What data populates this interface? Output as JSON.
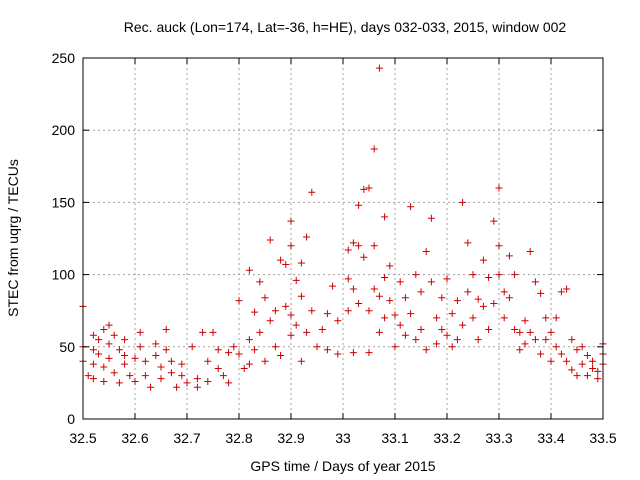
{
  "chart_data": {
    "type": "scatter",
    "title": "Rec. auck (Lon=174, Lat=-36, h=HE), days 032-033, 2015, window 002",
    "xlabel": "GPS time / Days of year 2015",
    "ylabel": "STEC from uqrg / TECUs",
    "xlim": [
      32.5,
      33.5
    ],
    "ylim": [
      0,
      250
    ],
    "xticks": [
      "32.5",
      "32.6",
      "32.7",
      "32.8",
      "32.9",
      "33",
      "33.1",
      "33.2",
      "33.3",
      "33.4",
      "33.5"
    ],
    "yticks": [
      "0",
      "50",
      "100",
      "150",
      "200",
      "250"
    ],
    "grid": true,
    "marker": "plus",
    "series": [
      {
        "name": "STEC",
        "color": "#cc0000",
        "points": [
          [
            32.5,
            78
          ],
          [
            32.5,
            50
          ],
          [
            32.5,
            40
          ],
          [
            32.51,
            30
          ],
          [
            32.52,
            58
          ],
          [
            32.52,
            48
          ],
          [
            32.52,
            38
          ],
          [
            32.52,
            28
          ],
          [
            32.53,
            55
          ],
          [
            32.53,
            45
          ],
          [
            32.54,
            62
          ],
          [
            32.54,
            36
          ],
          [
            32.54,
            26
          ],
          [
            32.55,
            65
          ],
          [
            32.55,
            52
          ],
          [
            32.55,
            42
          ],
          [
            32.56,
            58
          ],
          [
            32.56,
            32
          ],
          [
            32.57,
            48
          ],
          [
            32.57,
            25
          ],
          [
            32.58,
            55
          ],
          [
            32.58,
            44
          ],
          [
            32.58,
            38
          ],
          [
            32.59,
            30
          ],
          [
            32.6,
            42
          ],
          [
            32.6,
            26
          ],
          [
            32.61,
            60
          ],
          [
            32.61,
            50
          ],
          [
            32.62,
            40
          ],
          [
            32.62,
            30
          ],
          [
            32.63,
            22
          ],
          [
            32.64,
            52
          ],
          [
            32.64,
            44
          ],
          [
            32.65,
            36
          ],
          [
            32.65,
            28
          ],
          [
            32.66,
            62
          ],
          [
            32.66,
            48
          ],
          [
            32.67,
            40
          ],
          [
            32.67,
            32
          ],
          [
            32.68,
            22
          ],
          [
            32.69,
            38
          ],
          [
            32.69,
            30
          ],
          [
            32.7,
            25
          ],
          [
            32.71,
            50
          ],
          [
            32.72,
            28
          ],
          [
            32.72,
            22
          ],
          [
            32.73,
            60
          ],
          [
            32.74,
            40
          ],
          [
            32.74,
            26
          ],
          [
            32.75,
            60
          ],
          [
            32.76,
            48
          ],
          [
            32.76,
            35
          ],
          [
            32.77,
            30
          ],
          [
            32.78,
            46
          ],
          [
            32.78,
            25
          ],
          [
            32.79,
            50
          ],
          [
            32.8,
            82
          ],
          [
            32.8,
            45
          ],
          [
            32.81,
            35
          ],
          [
            32.82,
            103
          ],
          [
            32.82,
            55
          ],
          [
            32.82,
            38
          ],
          [
            32.83,
            74
          ],
          [
            32.83,
            48
          ],
          [
            32.84,
            95
          ],
          [
            32.84,
            60
          ],
          [
            32.85,
            84
          ],
          [
            32.85,
            40
          ],
          [
            32.86,
            124
          ],
          [
            32.86,
            68
          ],
          [
            32.87,
            75
          ],
          [
            32.87,
            50
          ],
          [
            32.88,
            110
          ],
          [
            32.88,
            44
          ],
          [
            32.89,
            107
          ],
          [
            32.89,
            78
          ],
          [
            32.9,
            137
          ],
          [
            32.9,
            120
          ],
          [
            32.9,
            72
          ],
          [
            32.9,
            58
          ],
          [
            32.91,
            96
          ],
          [
            32.91,
            65
          ],
          [
            32.92,
            108
          ],
          [
            32.92,
            85
          ],
          [
            32.92,
            40
          ],
          [
            32.93,
            126
          ],
          [
            32.93,
            60
          ],
          [
            32.94,
            157
          ],
          [
            32.94,
            75
          ],
          [
            32.95,
            50
          ],
          [
            32.96,
            62
          ],
          [
            32.97,
            73
          ],
          [
            32.97,
            48
          ],
          [
            32.98,
            92
          ],
          [
            32.99,
            68
          ],
          [
            32.99,
            45
          ],
          [
            33.01,
            117
          ],
          [
            33.01,
            97
          ],
          [
            33.01,
            75
          ],
          [
            33.02,
            122
          ],
          [
            33.02,
            90
          ],
          [
            33.02,
            46
          ],
          [
            33.03,
            148
          ],
          [
            33.03,
            120
          ],
          [
            33.03,
            80
          ],
          [
            33.04,
            159
          ],
          [
            33.04,
            112
          ],
          [
            33.05,
            160
          ],
          [
            33.05,
            75
          ],
          [
            33.05,
            46
          ],
          [
            33.06,
            187
          ],
          [
            33.06,
            120
          ],
          [
            33.06,
            90
          ],
          [
            33.07,
            243
          ],
          [
            33.07,
            85
          ],
          [
            33.07,
            60
          ],
          [
            33.08,
            140
          ],
          [
            33.08,
            98
          ],
          [
            33.08,
            70
          ],
          [
            33.09,
            106
          ],
          [
            33.09,
            82
          ],
          [
            33.1,
            72
          ],
          [
            33.1,
            50
          ],
          [
            33.11,
            95
          ],
          [
            33.11,
            65
          ],
          [
            33.12,
            84
          ],
          [
            33.12,
            58
          ],
          [
            33.13,
            147
          ],
          [
            33.13,
            73
          ],
          [
            33.14,
            100
          ],
          [
            33.14,
            55
          ],
          [
            33.15,
            88
          ],
          [
            33.15,
            62
          ],
          [
            33.16,
            116
          ],
          [
            33.16,
            48
          ],
          [
            33.17,
            139
          ],
          [
            33.17,
            95
          ],
          [
            33.18,
            70
          ],
          [
            33.18,
            52
          ],
          [
            33.19,
            84
          ],
          [
            33.19,
            62
          ],
          [
            33.2,
            97
          ],
          [
            33.2,
            58
          ],
          [
            33.21,
            73
          ],
          [
            33.21,
            50
          ],
          [
            33.22,
            82
          ],
          [
            33.22,
            55
          ],
          [
            33.23,
            150
          ],
          [
            33.23,
            65
          ],
          [
            33.24,
            122
          ],
          [
            33.24,
            88
          ],
          [
            33.25,
            100
          ],
          [
            33.25,
            70
          ],
          [
            33.26,
            83
          ],
          [
            33.26,
            55
          ],
          [
            33.27,
            110
          ],
          [
            33.27,
            78
          ],
          [
            33.28,
            98
          ],
          [
            33.28,
            62
          ],
          [
            33.29,
            137
          ],
          [
            33.29,
            80
          ],
          [
            33.3,
            160
          ],
          [
            33.3,
            120
          ],
          [
            33.3,
            100
          ],
          [
            33.31,
            88
          ],
          [
            33.31,
            70
          ],
          [
            33.32,
            113
          ],
          [
            33.32,
            84
          ],
          [
            33.33,
            100
          ],
          [
            33.33,
            62
          ],
          [
            33.34,
            60
          ],
          [
            33.34,
            48
          ],
          [
            33.35,
            68
          ],
          [
            33.35,
            52
          ],
          [
            33.36,
            116
          ],
          [
            33.36,
            60
          ],
          [
            33.37,
            95
          ],
          [
            33.37,
            55
          ],
          [
            33.38,
            87
          ],
          [
            33.38,
            45
          ],
          [
            33.39,
            70
          ],
          [
            33.39,
            55
          ],
          [
            33.4,
            60
          ],
          [
            33.4,
            40
          ],
          [
            33.41,
            70
          ],
          [
            33.41,
            50
          ],
          [
            33.42,
            88
          ],
          [
            33.42,
            45
          ],
          [
            33.43,
            90
          ],
          [
            33.43,
            40
          ],
          [
            33.44,
            55
          ],
          [
            33.44,
            34
          ],
          [
            33.45,
            48
          ],
          [
            33.45,
            30
          ],
          [
            33.46,
            50
          ],
          [
            33.46,
            38
          ],
          [
            33.47,
            44
          ],
          [
            33.47,
            30
          ],
          [
            33.48,
            40
          ],
          [
            33.48,
            35
          ],
          [
            33.49,
            33
          ],
          [
            33.49,
            28
          ],
          [
            33.5,
            52
          ],
          [
            33.5,
            45
          ],
          [
            33.5,
            38
          ]
        ]
      }
    ]
  }
}
